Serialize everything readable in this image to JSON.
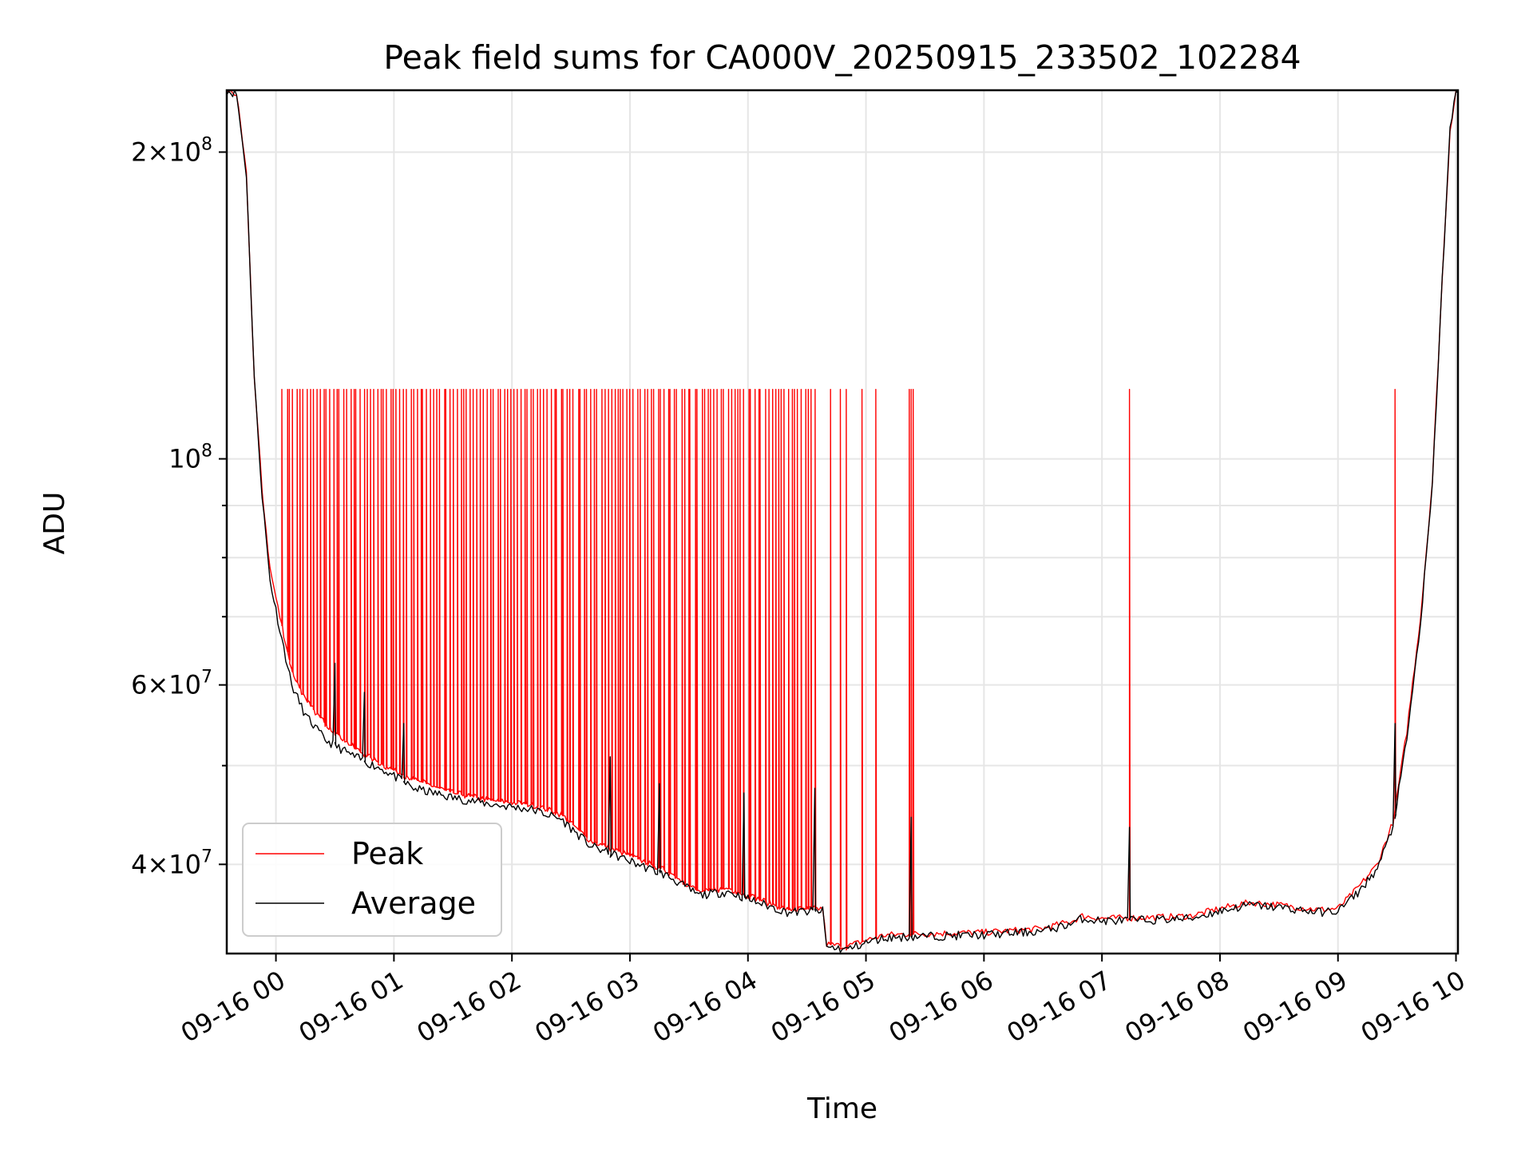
{
  "chart_data": {
    "type": "line",
    "title": "Peak field sums for CA000V_20250915_233502_102284",
    "xlabel": "Time",
    "ylabel": "ADU",
    "y_scale": "log",
    "grid": true,
    "legend_position": "lower left",
    "xlim": [
      "2025-09-15 23:35",
      "2025-09-16 10:01"
    ],
    "ylim": [
      32700000,
      230000000
    ],
    "x_tick_labels": [
      "09-16 00",
      "09-16 01",
      "09-16 02",
      "09-16 03",
      "09-16 04",
      "09-16 05",
      "09-16 06",
      "09-16 07",
      "09-16 08",
      "09-16 09",
      "09-16 10"
    ],
    "x_tick_values": [
      "2025-09-16 00:00",
      "2025-09-16 01:00",
      "2025-09-16 02:00",
      "2025-09-16 03:00",
      "2025-09-16 04:00",
      "2025-09-16 05:00",
      "2025-09-16 06:00",
      "2025-09-16 07:00",
      "2025-09-16 08:00",
      "2025-09-16 09:00",
      "2025-09-16 10:00"
    ],
    "y_ticks": [
      {
        "value": 200000000,
        "mantissa": "2",
        "exponent": "8"
      },
      {
        "value": 100000000,
        "mantissa": "",
        "exponent": "8"
      },
      {
        "value": 60000000,
        "mantissa": "6",
        "exponent": "7"
      },
      {
        "value": 40000000,
        "mantissa": "4",
        "exponent": "7"
      }
    ],
    "y_minor_ticks": [
      50000000,
      70000000,
      80000000,
      90000000
    ],
    "colors": {
      "peak": "#ff0000",
      "average": "#000000"
    },
    "series": [
      {
        "name": "Peak",
        "color": "#ff0000",
        "baseline": [
          [
            "2025-09-15 23:35",
            230000000
          ],
          [
            "2025-09-15 23:40",
            228000000
          ],
          [
            "2025-09-15 23:45",
            190000000
          ],
          [
            "2025-09-15 23:49",
            120000000
          ],
          [
            "2025-09-15 23:53",
            93000000
          ],
          [
            "2025-09-15 23:57",
            78000000
          ],
          [
            "2025-09-16 00:02",
            70000000
          ],
          [
            "2025-09-16 00:08",
            62000000
          ],
          [
            "2025-09-16 00:15",
            58000000
          ],
          [
            "2025-09-16 00:25",
            55000000
          ],
          [
            "2025-09-16 00:40",
            52000000
          ],
          [
            "2025-09-16 00:55",
            50000000
          ],
          [
            "2025-09-16 01:10",
            48500000
          ],
          [
            "2025-09-16 01:30",
            47000000
          ],
          [
            "2025-09-16 01:50",
            46200000
          ],
          [
            "2025-09-16 02:10",
            45800000
          ],
          [
            "2025-09-16 02:25",
            44800000
          ],
          [
            "2025-09-16 02:40",
            42200000
          ],
          [
            "2025-09-16 03:00",
            40800000
          ],
          [
            "2025-09-16 03:20",
            39300000
          ],
          [
            "2025-09-16 03:35",
            37600000
          ],
          [
            "2025-09-16 03:50",
            37900000
          ],
          [
            "2025-09-16 04:05",
            37000000
          ],
          [
            "2025-09-16 04:20",
            36100000
          ],
          [
            "2025-09-16 04:38",
            36200000
          ],
          [
            "2025-09-16 04:40",
            33400000
          ],
          [
            "2025-09-16 04:50",
            33200000
          ],
          [
            "2025-09-16 05:00",
            33700000
          ],
          [
            "2025-09-16 05:10",
            34100000
          ],
          [
            "2025-09-16 05:30",
            34200000
          ],
          [
            "2025-09-16 06:00",
            34300000
          ],
          [
            "2025-09-16 06:30",
            34600000
          ],
          [
            "2025-09-16 06:45",
            35200000
          ],
          [
            "2025-09-16 06:50",
            35600000
          ],
          [
            "2025-09-16 07:00",
            35400000
          ],
          [
            "2025-09-16 07:30",
            35500000
          ],
          [
            "2025-09-16 07:45",
            35600000
          ],
          [
            "2025-09-16 08:00",
            36200000
          ],
          [
            "2025-09-16 08:15",
            36700000
          ],
          [
            "2025-09-16 08:30",
            36500000
          ],
          [
            "2025-09-16 08:50",
            36100000
          ],
          [
            "2025-09-16 09:00",
            36200000
          ],
          [
            "2025-09-16 09:10",
            37900000
          ],
          [
            "2025-09-16 09:20",
            40000000
          ],
          [
            "2025-09-16 09:28",
            44000000
          ],
          [
            "2025-09-16 09:35",
            54000000
          ],
          [
            "2025-09-16 09:42",
            70000000
          ],
          [
            "2025-09-16 09:48",
            95000000
          ],
          [
            "2025-09-16 09:53",
            150000000
          ],
          [
            "2025-09-16 09:57",
            210000000
          ],
          [
            "2025-09-16 10:00",
            230000000
          ],
          [
            "2025-09-16 10:01",
            230000000
          ]
        ],
        "spikes": {
          "cap": 117000000,
          "dense_start": "2025-09-16 00:03",
          "dense_end": "2025-09-16 04:35",
          "dense_count": 160,
          "times": [
            "2025-09-16 04:42",
            "2025-09-16 04:47",
            "2025-09-16 04:50",
            "2025-09-16 04:58",
            "2025-09-16 05:05",
            "2025-09-16 05:22",
            "2025-09-16 05:23",
            "2025-09-16 05:24",
            "2025-09-16 07:14",
            "2025-09-16 09:29"
          ]
        }
      },
      {
        "name": "Average",
        "color": "#000000",
        "baseline": [
          [
            "2025-09-15 23:35",
            230000000
          ],
          [
            "2025-09-15 23:40",
            228000000
          ],
          [
            "2025-09-15 23:45",
            190000000
          ],
          [
            "2025-09-15 23:49",
            120000000
          ],
          [
            "2025-09-15 23:53",
            92000000
          ],
          [
            "2025-09-15 23:57",
            76000000
          ],
          [
            "2025-09-16 00:02",
            68000000
          ],
          [
            "2025-09-16 00:08",
            60000000
          ],
          [
            "2025-09-16 00:15",
            56000000
          ],
          [
            "2025-09-16 00:25",
            53000000
          ],
          [
            "2025-09-16 00:40",
            51000000
          ],
          [
            "2025-09-16 00:55",
            49500000
          ],
          [
            "2025-09-16 01:10",
            47500000
          ],
          [
            "2025-09-16 01:30",
            46500000
          ],
          [
            "2025-09-16 01:50",
            45800000
          ],
          [
            "2025-09-16 02:10",
            45300000
          ],
          [
            "2025-09-16 02:25",
            44300000
          ],
          [
            "2025-09-16 02:40",
            41700000
          ],
          [
            "2025-09-16 03:00",
            40300000
          ],
          [
            "2025-09-16 03:20",
            38900000
          ],
          [
            "2025-09-16 03:35",
            37300000
          ],
          [
            "2025-09-16 03:50",
            37600000
          ],
          [
            "2025-09-16 04:05",
            36700000
          ],
          [
            "2025-09-16 04:20",
            35900000
          ],
          [
            "2025-09-16 04:38",
            36000000
          ],
          [
            "2025-09-16 04:40",
            33200000
          ],
          [
            "2025-09-16 04:50",
            33000000
          ],
          [
            "2025-09-16 05:00",
            33500000
          ],
          [
            "2025-09-16 05:10",
            33900000
          ],
          [
            "2025-09-16 05:30",
            34000000
          ],
          [
            "2025-09-16 06:00",
            34100000
          ],
          [
            "2025-09-16 06:30",
            34400000
          ],
          [
            "2025-09-16 06:45",
            35000000
          ],
          [
            "2025-09-16 06:50",
            35400000
          ],
          [
            "2025-09-16 07:00",
            35200000
          ],
          [
            "2025-09-16 07:30",
            35300000
          ],
          [
            "2025-09-16 07:45",
            35400000
          ],
          [
            "2025-09-16 08:00",
            36000000
          ],
          [
            "2025-09-16 08:15",
            36500000
          ],
          [
            "2025-09-16 08:30",
            36300000
          ],
          [
            "2025-09-16 08:50",
            35900000
          ],
          [
            "2025-09-16 09:00",
            36000000
          ],
          [
            "2025-09-16 09:10",
            37500000
          ],
          [
            "2025-09-16 09:20",
            39600000
          ],
          [
            "2025-09-16 09:28",
            43500000
          ],
          [
            "2025-09-16 09:35",
            53000000
          ],
          [
            "2025-09-16 09:42",
            69000000
          ],
          [
            "2025-09-16 09:48",
            94000000
          ],
          [
            "2025-09-16 09:53",
            150000000
          ],
          [
            "2025-09-16 09:57",
            210000000
          ],
          [
            "2025-09-16 10:00",
            230000000
          ],
          [
            "2025-09-16 10:01",
            230000000
          ]
        ],
        "bumps": [
          [
            "2025-09-16 00:30",
            63000000
          ],
          [
            "2025-09-16 00:45",
            59000000
          ],
          [
            "2025-09-16 01:05",
            55000000
          ],
          [
            "2025-09-16 02:50",
            51000000
          ],
          [
            "2025-09-16 03:15",
            48000000
          ],
          [
            "2025-09-16 03:58",
            47000000
          ],
          [
            "2025-09-16 04:34",
            47500000
          ],
          [
            "2025-09-16 05:23",
            44500000
          ],
          [
            "2025-09-16 07:14",
            43500000
          ],
          [
            "2025-09-16 09:29",
            55000000
          ]
        ]
      }
    ]
  }
}
